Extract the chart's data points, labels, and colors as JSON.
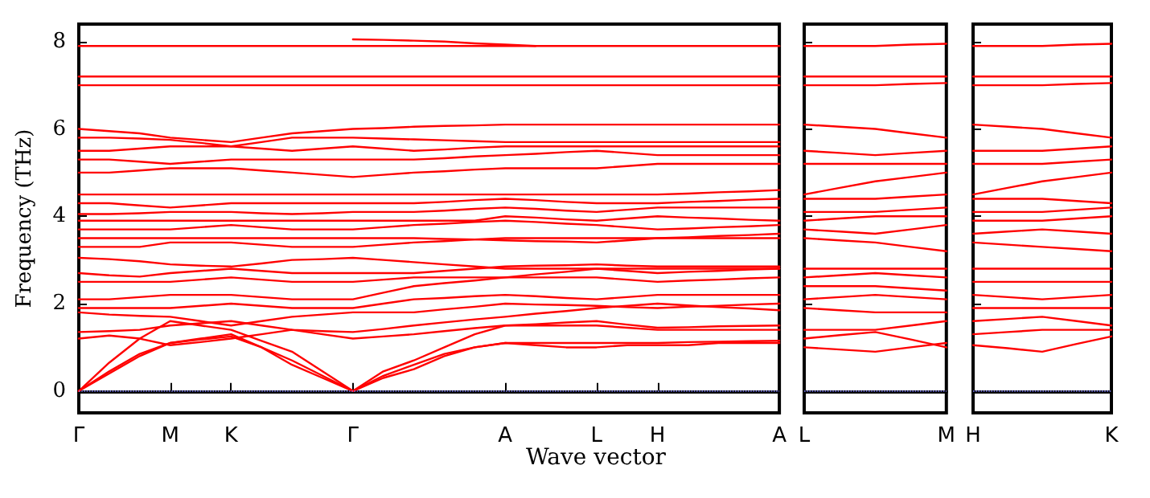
{
  "chart_data": [
    {
      "type": "line",
      "ylabel": "Frequency (THz)",
      "xlabel": "Wave vector",
      "marker": "none",
      "line_style": "solid",
      "categories": [
        "Γ",
        null,
        null,
        "M",
        null,
        "K",
        null,
        null,
        null,
        "Γ",
        null,
        null,
        null,
        null,
        "A",
        null,
        null,
        "L",
        null,
        "H",
        null,
        null,
        null,
        "A"
      ],
      "ylim": [
        -0.5,
        8.4
      ],
      "yticks": [
        0,
        2,
        4,
        6,
        8
      ],
      "ref_lines": [
        {
          "axis": "y",
          "value": 0,
          "color": "#8080ff",
          "line_style": "dotted"
        }
      ],
      "series": [
        {
          "color": "#ff0000",
          "values": [
            0,
            0.4,
            0.8,
            1.1,
            1.2,
            1.3,
            1.0,
            0.6,
            0.3,
            0,
            0.3,
            0.5,
            0.8,
            1.0,
            1.1,
            1.05,
            1.0,
            1.0,
            1.05,
            1.05,
            1.05,
            1.1,
            1.1,
            1.1
          ]
        },
        {
          "color": "#ff0000",
          "values": [
            0,
            0.45,
            0.85,
            1.1,
            1.18,
            1.25,
            1.0,
            0.7,
            0.35,
            0,
            0.35,
            0.6,
            0.85,
            1.0,
            1.1,
            1.1,
            1.1,
            1.1,
            1.1,
            1.1,
            1.12,
            1.13,
            1.14,
            1.15
          ]
        },
        {
          "color": "#ff0000",
          "values": [
            0,
            0.65,
            1.2,
            1.6,
            1.5,
            1.4,
            1.15,
            0.9,
            0.45,
            0,
            0.45,
            0.7,
            1.0,
            1.3,
            1.5,
            1.5,
            1.5,
            1.5,
            1.45,
            1.4,
            1.4,
            1.4,
            1.4,
            1.4
          ]
        },
        {
          "color": "#ff0000",
          "values": [
            1.2,
            1.27,
            1.2,
            1.05,
            1.12,
            1.2,
            1.3,
            1.4,
            1.3,
            1.2,
            1.25,
            1.3,
            1.37,
            1.44,
            1.5,
            1.53,
            1.57,
            1.6,
            1.52,
            1.45,
            1.46,
            1.48,
            1.49,
            1.5
          ]
        },
        {
          "color": "#ff0000",
          "values": [
            1.35,
            1.37,
            1.4,
            1.5,
            1.55,
            1.6,
            1.5,
            1.4,
            1.37,
            1.35,
            1.42,
            1.5,
            1.57,
            1.64,
            1.7,
            1.77,
            1.83,
            1.9,
            1.95,
            2.0,
            1.96,
            1.92,
            1.89,
            1.85
          ]
        },
        {
          "color": "#ff0000",
          "values": [
            1.8,
            1.75,
            1.72,
            1.7,
            1.6,
            1.5,
            1.6,
            1.7,
            1.75,
            1.8,
            1.8,
            1.8,
            1.87,
            1.93,
            2.0,
            1.98,
            1.97,
            1.95,
            1.92,
            1.9,
            1.93,
            1.95,
            1.98,
            2.0
          ]
        },
        {
          "color": "#ff0000",
          "values": [
            1.9,
            1.9,
            1.9,
            1.9,
            1.95,
            2.0,
            1.95,
            1.9,
            1.9,
            1.9,
            2.0,
            2.1,
            2.13,
            2.17,
            2.2,
            2.17,
            2.13,
            2.1,
            2.15,
            2.2,
            2.2,
            2.2,
            2.2,
            2.2
          ]
        },
        {
          "color": "#ff0000",
          "values": [
            2.1,
            2.1,
            2.15,
            2.2,
            2.2,
            2.2,
            2.15,
            2.1,
            2.1,
            2.1,
            2.25,
            2.4,
            2.47,
            2.53,
            2.6,
            2.6,
            2.6,
            2.6,
            2.55,
            2.5,
            2.53,
            2.55,
            2.58,
            2.6
          ]
        },
        {
          "color": "#ff0000",
          "values": [
            2.5,
            2.5,
            2.5,
            2.5,
            2.55,
            2.6,
            2.55,
            2.5,
            2.5,
            2.5,
            2.55,
            2.6,
            2.6,
            2.6,
            2.6,
            2.67,
            2.73,
            2.8,
            2.75,
            2.7,
            2.73,
            2.75,
            2.78,
            2.8
          ]
        },
        {
          "color": "#ff0000",
          "values": [
            2.7,
            2.65,
            2.62,
            2.7,
            2.75,
            2.8,
            2.75,
            2.7,
            2.7,
            2.7,
            2.7,
            2.7,
            2.75,
            2.8,
            2.85,
            2.87,
            2.88,
            2.9,
            2.87,
            2.85,
            2.85,
            2.85,
            2.85,
            2.85
          ]
        },
        {
          "color": "#ff0000",
          "values": [
            3.05,
            3.02,
            2.97,
            2.9,
            2.87,
            2.85,
            2.92,
            3.0,
            3.02,
            3.05,
            3.0,
            2.95,
            2.9,
            2.85,
            2.8,
            2.8,
            2.8,
            2.8,
            2.8,
            2.8,
            2.8,
            2.8,
            2.8,
            2.8
          ]
        },
        {
          "color": "#ff0000",
          "values": [
            3.3,
            3.3,
            3.3,
            3.4,
            3.4,
            3.4,
            3.35,
            3.3,
            3.3,
            3.3,
            3.35,
            3.4,
            3.43,
            3.47,
            3.5,
            3.5,
            3.5,
            3.5,
            3.5,
            3.5,
            3.5,
            3.5,
            3.5,
            3.5
          ]
        },
        {
          "color": "#ff0000",
          "values": [
            3.5,
            3.5,
            3.5,
            3.5,
            3.5,
            3.5,
            3.5,
            3.5,
            3.5,
            3.5,
            3.5,
            3.5,
            3.48,
            3.47,
            3.45,
            3.43,
            3.42,
            3.4,
            3.45,
            3.5,
            3.52,
            3.55,
            3.57,
            3.6
          ]
        },
        {
          "color": "#ff0000",
          "values": [
            3.7,
            3.7,
            3.7,
            3.7,
            3.75,
            3.8,
            3.75,
            3.7,
            3.7,
            3.7,
            3.75,
            3.8,
            3.83,
            3.87,
            3.9,
            3.87,
            3.83,
            3.8,
            3.75,
            3.7,
            3.72,
            3.75,
            3.77,
            3.8
          ]
        },
        {
          "color": "#ff0000",
          "values": [
            3.9,
            3.9,
            3.9,
            3.9,
            3.9,
            3.9,
            3.9,
            3.9,
            3.9,
            3.9,
            3.9,
            3.9,
            3.9,
            3.9,
            4.0,
            3.97,
            3.93,
            3.9,
            3.95,
            4.0,
            3.97,
            3.95,
            3.92,
            3.9
          ]
        },
        {
          "color": "#ff0000",
          "values": [
            4.05,
            4.05,
            4.07,
            4.1,
            4.1,
            4.1,
            4.07,
            4.05,
            4.07,
            4.1,
            4.1,
            4.1,
            4.13,
            4.17,
            4.2,
            4.17,
            4.13,
            4.1,
            4.15,
            4.2,
            4.2,
            4.2,
            4.2,
            4.2
          ]
        },
        {
          "color": "#ff0000",
          "values": [
            4.3,
            4.3,
            4.25,
            4.2,
            4.25,
            4.3,
            4.3,
            4.3,
            4.3,
            4.3,
            4.3,
            4.3,
            4.33,
            4.37,
            4.4,
            4.37,
            4.33,
            4.3,
            4.3,
            4.3,
            4.33,
            4.35,
            4.38,
            4.4
          ]
        },
        {
          "color": "#ff0000",
          "values": [
            4.5,
            4.5,
            4.5,
            4.5,
            4.5,
            4.5,
            4.5,
            4.5,
            4.5,
            4.5,
            4.5,
            4.5,
            4.5,
            4.5,
            4.5,
            4.5,
            4.5,
            4.5,
            4.5,
            4.5,
            4.52,
            4.55,
            4.57,
            4.6
          ]
        },
        {
          "color": "#ff0000",
          "values": [
            5.0,
            5.0,
            5.05,
            5.1,
            5.1,
            5.1,
            5.05,
            5.0,
            4.95,
            4.9,
            4.95,
            5.0,
            5.03,
            5.07,
            5.1,
            5.1,
            5.1,
            5.1,
            5.15,
            5.2,
            5.2,
            5.2,
            5.2,
            5.2
          ]
        },
        {
          "color": "#ff0000",
          "values": [
            5.3,
            5.3,
            5.25,
            5.2,
            5.25,
            5.3,
            5.3,
            5.3,
            5.3,
            5.3,
            5.3,
            5.3,
            5.33,
            5.37,
            5.4,
            5.43,
            5.47,
            5.5,
            5.45,
            5.4,
            5.4,
            5.4,
            5.4,
            5.4
          ]
        },
        {
          "color": "#ff0000",
          "values": [
            5.5,
            5.5,
            5.55,
            5.6,
            5.6,
            5.6,
            5.55,
            5.5,
            5.55,
            5.6,
            5.55,
            5.5,
            5.53,
            5.57,
            5.6,
            5.6,
            5.6,
            5.6,
            5.6,
            5.6,
            5.6,
            5.6,
            5.6,
            5.6
          ]
        },
        {
          "color": "#ff0000",
          "values": [
            5.8,
            5.8,
            5.78,
            5.75,
            5.68,
            5.6,
            5.7,
            5.8,
            5.8,
            5.8,
            5.78,
            5.76,
            5.74,
            5.72,
            5.7,
            5.7,
            5.7,
            5.7,
            5.7,
            5.7,
            5.7,
            5.7,
            5.7,
            5.7
          ]
        },
        {
          "color": "#ff0000",
          "values": [
            6.0,
            5.95,
            5.9,
            5.8,
            5.75,
            5.7,
            5.8,
            5.9,
            5.95,
            6.0,
            6.02,
            6.05,
            6.07,
            6.08,
            6.1,
            6.1,
            6.1,
            6.1,
            6.1,
            6.1,
            6.1,
            6.1,
            6.1,
            6.1
          ]
        },
        {
          "color": "#ff0000",
          "values": [
            7.0,
            7.0,
            7.0,
            7.0,
            7.0,
            7.0,
            7.0,
            7.0,
            7.0,
            7.0,
            7.0,
            7.0,
            7.0,
            7.0,
            7.0,
            7.0,
            7.0,
            7.0,
            7.0,
            7.0,
            7.0,
            7.0,
            7.0,
            7.0
          ]
        },
        {
          "color": "#ff0000",
          "values": [
            7.2,
            7.2,
            7.2,
            7.2,
            7.2,
            7.2,
            7.2,
            7.2,
            7.2,
            7.2,
            7.2,
            7.2,
            7.2,
            7.2,
            7.2,
            7.2,
            7.2,
            7.2,
            7.2,
            7.2,
            7.2,
            7.2,
            7.2,
            7.2
          ]
        },
        {
          "color": "#ff0000",
          "values": [
            7.9,
            7.9,
            7.9,
            7.9,
            7.9,
            7.9,
            7.9,
            7.9,
            7.9,
            7.9,
            7.9,
            7.9,
            7.9,
            7.9,
            7.9,
            7.9,
            7.9,
            7.9,
            7.9,
            7.9,
            7.9,
            7.9,
            7.9,
            7.9
          ]
        },
        {
          "color": "#ff0000",
          "values": [
            null,
            null,
            null,
            null,
            null,
            null,
            null,
            null,
            null,
            8.05,
            8.04,
            8.02,
            8.0,
            7.96,
            7.93,
            7.9,
            null,
            null,
            null,
            null,
            null,
            null,
            null,
            null
          ]
        }
      ]
    },
    {
      "type": "line",
      "marker": "none",
      "line_style": "solid",
      "tick_labels": "x",
      "categories": [
        "L",
        null,
        null,
        null,
        "M"
      ],
      "ylim": [
        -0.5,
        8.4
      ],
      "yticks": [
        0,
        2,
        4,
        6,
        8
      ],
      "ref_lines": [
        {
          "axis": "y",
          "value": 0,
          "color": "#8080ff",
          "line_style": "dotted"
        }
      ],
      "series": [
        {
          "color": "#ff0000",
          "values": [
            1.0,
            0.95,
            0.9,
            1.0,
            1.1
          ]
        },
        {
          "color": "#ff0000",
          "values": [
            1.2,
            1.28,
            1.35,
            1.18,
            1.0
          ]
        },
        {
          "color": "#ff0000",
          "values": [
            1.4,
            1.4,
            1.4,
            1.5,
            1.6
          ]
        },
        {
          "color": "#ff0000",
          "values": [
            1.9,
            1.85,
            1.8,
            1.8,
            1.8
          ]
        },
        {
          "color": "#ff0000",
          "values": [
            2.1,
            2.15,
            2.2,
            2.15,
            2.1
          ]
        },
        {
          "color": "#ff0000",
          "values": [
            2.4,
            2.4,
            2.4,
            2.35,
            2.3
          ]
        },
        {
          "color": "#ff0000",
          "values": [
            2.6,
            2.65,
            2.7,
            2.65,
            2.6
          ]
        },
        {
          "color": "#ff0000",
          "values": [
            2.8,
            2.8,
            2.8,
            2.8,
            2.8
          ]
        },
        {
          "color": "#ff0000",
          "values": [
            3.5,
            3.45,
            3.4,
            3.3,
            3.2
          ]
        },
        {
          "color": "#ff0000",
          "values": [
            3.7,
            3.65,
            3.6,
            3.7,
            3.8
          ]
        },
        {
          "color": "#ff0000",
          "values": [
            3.9,
            3.95,
            4.0,
            4.0,
            4.0
          ]
        },
        {
          "color": "#ff0000",
          "values": [
            4.1,
            4.1,
            4.1,
            4.15,
            4.2
          ]
        },
        {
          "color": "#ff0000",
          "values": [
            4.4,
            4.4,
            4.4,
            4.45,
            4.5
          ]
        },
        {
          "color": "#ff0000",
          "values": [
            4.5,
            4.65,
            4.8,
            4.9,
            5.0
          ]
        },
        {
          "color": "#ff0000",
          "values": [
            5.2,
            5.2,
            5.2,
            5.2,
            5.2
          ]
        },
        {
          "color": "#ff0000",
          "values": [
            5.5,
            5.45,
            5.4,
            5.45,
            5.5
          ]
        },
        {
          "color": "#ff0000",
          "values": [
            6.1,
            6.05,
            6.0,
            5.9,
            5.8
          ]
        },
        {
          "color": "#ff0000",
          "values": [
            7.0,
            7.0,
            7.0,
            7.03,
            7.05
          ]
        },
        {
          "color": "#ff0000",
          "values": [
            7.2,
            7.2,
            7.2,
            7.2,
            7.2
          ]
        },
        {
          "color": "#ff0000",
          "values": [
            7.9,
            7.9,
            7.9,
            7.93,
            7.95
          ]
        }
      ]
    },
    {
      "type": "line",
      "marker": "none",
      "line_style": "solid",
      "tick_labels": "x",
      "categories": [
        "H",
        null,
        null,
        null,
        "K"
      ],
      "ylim": [
        -0.5,
        8.4
      ],
      "yticks": [
        0,
        2,
        4,
        6,
        8
      ],
      "ref_lines": [
        {
          "axis": "y",
          "value": 0,
          "color": "#8080ff",
          "line_style": "dotted"
        }
      ],
      "series": [
        {
          "color": "#ff0000",
          "values": [
            1.05,
            0.98,
            0.9,
            1.08,
            1.25
          ]
        },
        {
          "color": "#ff0000",
          "values": [
            1.3,
            1.35,
            1.4,
            1.4,
            1.4
          ]
        },
        {
          "color": "#ff0000",
          "values": [
            1.6,
            1.65,
            1.7,
            1.6,
            1.5
          ]
        },
        {
          "color": "#ff0000",
          "values": [
            1.9,
            1.9,
            1.9,
            1.9,
            1.9
          ]
        },
        {
          "color": "#ff0000",
          "values": [
            2.2,
            2.15,
            2.1,
            2.15,
            2.2
          ]
        },
        {
          "color": "#ff0000",
          "values": [
            2.5,
            2.5,
            2.5,
            2.5,
            2.5
          ]
        },
        {
          "color": "#ff0000",
          "values": [
            2.8,
            2.8,
            2.8,
            2.8,
            2.8
          ]
        },
        {
          "color": "#ff0000",
          "values": [
            3.4,
            3.35,
            3.3,
            3.25,
            3.2
          ]
        },
        {
          "color": "#ff0000",
          "values": [
            3.6,
            3.65,
            3.7,
            3.65,
            3.6
          ]
        },
        {
          "color": "#ff0000",
          "values": [
            3.9,
            3.9,
            3.9,
            3.95,
            4.0
          ]
        },
        {
          "color": "#ff0000",
          "values": [
            4.1,
            4.1,
            4.1,
            4.15,
            4.2
          ]
        },
        {
          "color": "#ff0000",
          "values": [
            4.4,
            4.4,
            4.4,
            4.35,
            4.3
          ]
        },
        {
          "color": "#ff0000",
          "values": [
            4.5,
            4.65,
            4.8,
            4.9,
            5.0
          ]
        },
        {
          "color": "#ff0000",
          "values": [
            5.2,
            5.2,
            5.2,
            5.25,
            5.3
          ]
        },
        {
          "color": "#ff0000",
          "values": [
            5.5,
            5.5,
            5.5,
            5.55,
            5.6
          ]
        },
        {
          "color": "#ff0000",
          "values": [
            6.1,
            6.05,
            6.0,
            5.9,
            5.8
          ]
        },
        {
          "color": "#ff0000",
          "values": [
            7.0,
            7.0,
            7.0,
            7.03,
            7.05
          ]
        },
        {
          "color": "#ff0000",
          "values": [
            7.2,
            7.2,
            7.2,
            7.2,
            7.2
          ]
        },
        {
          "color": "#ff0000",
          "values": [
            7.9,
            7.9,
            7.9,
            7.93,
            7.95
          ]
        }
      ]
    }
  ]
}
